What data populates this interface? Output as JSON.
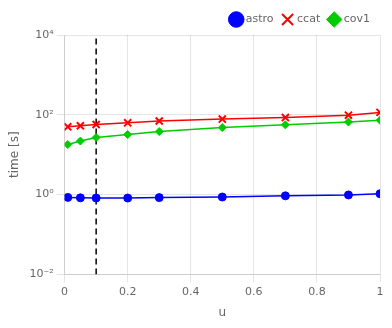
{
  "chart_data": {
    "type": "line",
    "x": [
      0.01,
      0.05,
      0.1,
      0.2,
      0.3,
      0.5,
      0.7,
      0.9,
      1.0
    ],
    "series": [
      {
        "name": "astro",
        "color": "#0000ff",
        "marker": "circle",
        "values": [
          0.85,
          0.83,
          0.82,
          0.82,
          0.84,
          0.87,
          0.93,
          0.98,
          1.05
        ]
      },
      {
        "name": "ccat",
        "color": "#ff0000",
        "marker": "x",
        "values": [
          50,
          53,
          57,
          63,
          70,
          78,
          85,
          98,
          115
        ]
      },
      {
        "name": "cov1",
        "color": "#00cc00",
        "marker": "diamond",
        "values": [
          18,
          22,
          27,
          32,
          38,
          48,
          56,
          66,
          73
        ]
      }
    ],
    "reference_lines": [
      {
        "x": 0.1,
        "line_style": "dashed",
        "color": "#000000"
      }
    ],
    "xlabel": "u",
    "ylabel": "time [s]",
    "xlim": [
      0,
      1
    ],
    "xticks": [
      0,
      0.2,
      0.4,
      0.6,
      0.8,
      1
    ],
    "ylim": [
      0.01,
      10000
    ],
    "yticks": [
      {
        "value": 0.01,
        "label": "10⁻²"
      },
      {
        "value": 1,
        "label": "10⁰"
      },
      {
        "value": 100,
        "label": "10²"
      },
      {
        "value": 10000,
        "label": "10⁴"
      }
    ],
    "log": "y",
    "grid": true,
    "legend": "upper right"
  }
}
